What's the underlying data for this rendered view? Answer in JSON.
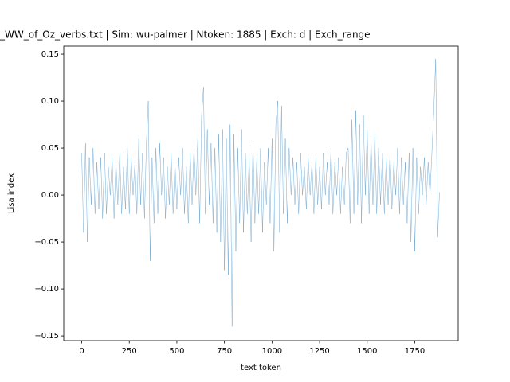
{
  "chart_data": {
    "type": "line",
    "title": "_WW_of_Oz_verbs.txt | Sim: wu-palmer | Ntoken: 1885 | Exch: d | Exch_range",
    "xlabel": "text token",
    "ylabel": "Lisa index",
    "x": [
      0,
      10,
      20,
      30,
      40,
      50,
      60,
      70,
      80,
      90,
      100,
      110,
      120,
      130,
      140,
      150,
      160,
      170,
      180,
      190,
      200,
      210,
      220,
      230,
      240,
      250,
      260,
      270,
      280,
      290,
      300,
      310,
      320,
      330,
      340,
      350,
      360,
      370,
      380,
      390,
      400,
      410,
      420,
      430,
      440,
      450,
      460,
      470,
      480,
      490,
      500,
      510,
      520,
      530,
      540,
      550,
      560,
      570,
      580,
      590,
      600,
      610,
      620,
      630,
      640,
      650,
      660,
      670,
      680,
      690,
      700,
      710,
      720,
      730,
      740,
      750,
      760,
      770,
      780,
      790,
      800,
      810,
      820,
      830,
      840,
      850,
      860,
      870,
      880,
      890,
      900,
      910,
      920,
      930,
      940,
      950,
      960,
      970,
      980,
      990,
      1000,
      1010,
      1020,
      1030,
      1040,
      1050,
      1060,
      1070,
      1080,
      1090,
      1100,
      1110,
      1120,
      1130,
      1140,
      1150,
      1160,
      1170,
      1180,
      1190,
      1200,
      1210,
      1220,
      1230,
      1240,
      1250,
      1260,
      1270,
      1280,
      1290,
      1300,
      1310,
      1320,
      1330,
      1340,
      1350,
      1360,
      1370,
      1380,
      1390,
      1400,
      1410,
      1420,
      1430,
      1440,
      1450,
      1460,
      1470,
      1480,
      1490,
      1500,
      1510,
      1520,
      1530,
      1540,
      1550,
      1560,
      1570,
      1580,
      1590,
      1600,
      1610,
      1620,
      1630,
      1640,
      1650,
      1660,
      1670,
      1680,
      1690,
      1700,
      1710,
      1720,
      1730,
      1740,
      1750,
      1760,
      1770,
      1780,
      1790,
      1800,
      1810,
      1820,
      1830,
      1840,
      1850,
      1860,
      1870,
      1880
    ],
    "values": [
      0.045,
      -0.04,
      0.055,
      -0.05,
      0.04,
      -0.01,
      0.05,
      -0.02,
      0.035,
      -0.015,
      0.04,
      -0.025,
      0.045,
      -0.02,
      0.03,
      0.0,
      0.04,
      -0.025,
      0.035,
      -0.01,
      0.045,
      -0.02,
      0.03,
      -0.015,
      0.05,
      -0.02,
      0.04,
      0.0,
      0.035,
      -0.02,
      0.06,
      -0.01,
      0.045,
      -0.025,
      0.055,
      0.1,
      -0.07,
      0.04,
      -0.03,
      0.05,
      -0.02,
      0.055,
      0.0,
      0.04,
      -0.025,
      0.03,
      -0.01,
      0.045,
      -0.02,
      0.035,
      -0.015,
      0.04,
      0.0,
      0.05,
      -0.02,
      0.03,
      -0.03,
      0.045,
      -0.01,
      0.05,
      0.0,
      0.06,
      -0.03,
      0.085,
      0.115,
      -0.02,
      0.07,
      -0.01,
      0.055,
      -0.03,
      0.05,
      -0.04,
      0.065,
      -0.05,
      0.07,
      -0.08,
      0.06,
      -0.085,
      0.075,
      -0.14,
      0.065,
      -0.06,
      0.05,
      -0.03,
      0.07,
      -0.04,
      0.045,
      -0.02,
      0.04,
      -0.05,
      0.055,
      -0.03,
      0.04,
      -0.02,
      0.05,
      -0.04,
      0.035,
      -0.01,
      0.05,
      -0.03,
      0.06,
      -0.06,
      0.075,
      0.1,
      -0.04,
      0.095,
      -0.02,
      0.06,
      -0.03,
      0.05,
      0.0,
      0.04,
      -0.01,
      0.035,
      -0.02,
      0.045,
      0.0,
      0.03,
      -0.015,
      0.04,
      0.0,
      0.035,
      -0.02,
      0.04,
      -0.01,
      0.03,
      -0.015,
      0.045,
      0.0,
      0.035,
      -0.01,
      0.05,
      -0.02,
      0.035,
      0.0,
      0.04,
      -0.02,
      0.03,
      -0.01,
      0.045,
      0.05,
      -0.03,
      0.08,
      -0.02,
      0.09,
      -0.01,
      0.075,
      -0.03,
      0.085,
      0.0,
      0.07,
      -0.02,
      0.06,
      -0.01,
      0.065,
      -0.02,
      0.05,
      -0.01,
      0.045,
      -0.02,
      0.04,
      -0.01,
      0.045,
      -0.015,
      0.035,
      0.0,
      0.05,
      -0.02,
      0.04,
      -0.01,
      0.035,
      -0.03,
      0.045,
      -0.05,
      0.05,
      -0.06,
      0.04,
      -0.02,
      0.03,
      0.0,
      0.04,
      -0.01,
      0.035,
      0.0,
      0.045,
      0.09,
      0.145,
      -0.045,
      0.003
    ],
    "color": "#1f77b4",
    "xlim": [
      -94.2,
      1978.2
    ],
    "xticks": [
      0,
      250,
      500,
      750,
      1000,
      1250,
      1500,
      1750
    ],
    "ylim": [
      -0.155,
      0.1585
    ],
    "yticks": [
      {
        "value": -0.15,
        "label": "−0.15"
      },
      {
        "value": -0.1,
        "label": "−0.10"
      },
      {
        "value": -0.05,
        "label": "−0.05"
      },
      {
        "value": 0,
        "label": "0.00"
      },
      0.05,
      {
        "value": 0.1,
        "label": "0.10"
      },
      0.15
    ]
  }
}
